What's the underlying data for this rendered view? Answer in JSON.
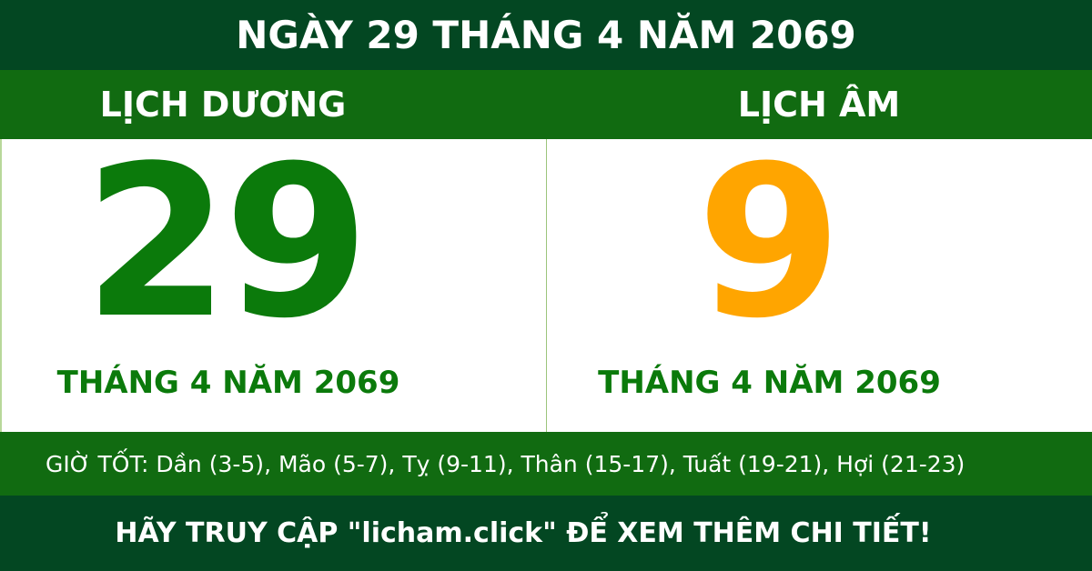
{
  "title": "NGÀY 29 THÁNG 4 NĂM 2069",
  "solar": {
    "label": "LỊCH DƯƠNG",
    "day": "29",
    "month_year": "THÁNG 4 NĂM 2069"
  },
  "lunar": {
    "label": "LỊCH ÂM",
    "day": "9",
    "month_year": "THÁNG 4 NĂM 2069"
  },
  "good_hours": "GIỜ TỐT: Dần (3-5), Mão (5-7), Tỵ (9-11), Thân (15-17), Tuất (19-21), Hợi (21-23)",
  "footer": "HÃY TRUY CẬP \"licham.click\" ĐỂ XEM THÊM CHI TIẾT!",
  "colors": {
    "dark_green": "#034722",
    "green": "#116b11",
    "day_green": "#0b7a0b",
    "lunar_orange": "#ffa500"
  }
}
